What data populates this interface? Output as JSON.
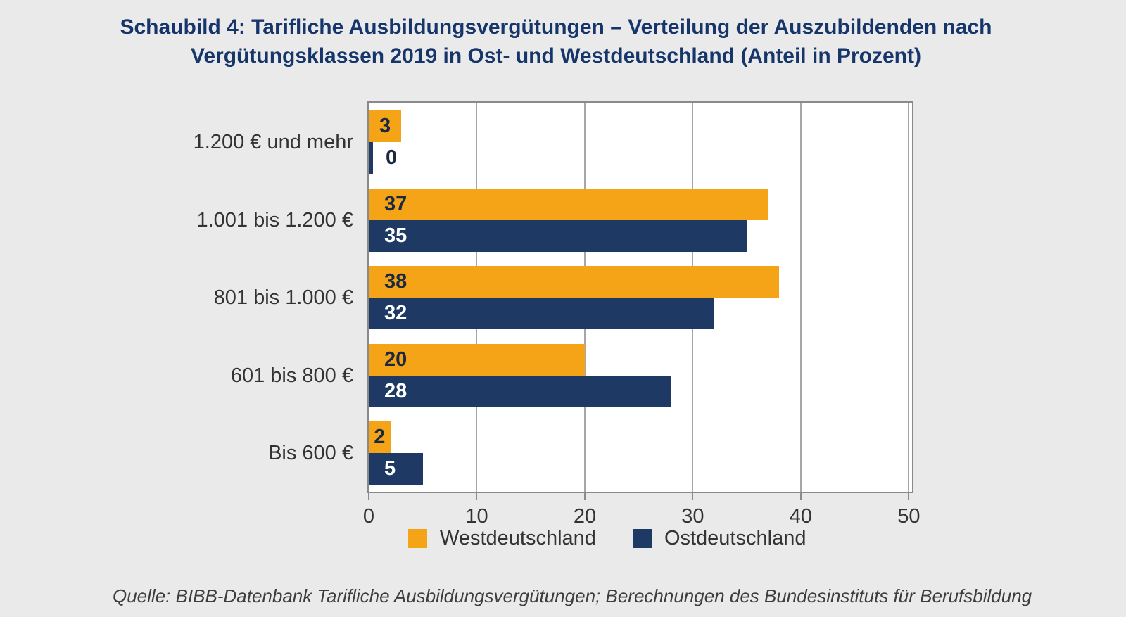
{
  "page": {
    "title_line1": "Schaubild 4: Tarifliche Ausbildungsvergütungen – Verteilung der Auszubildenden nach",
    "title_line2": "Vergütungsklassen 2019 in Ost- und Westdeutschland (Anteil in Prozent)",
    "source_note": "Quelle: BIBB-Datenbank Tarifliche Ausbildungsvergütungen; Berechnungen des Bundesinstituts für Berufsbildung"
  },
  "colors": {
    "background": "#EAEAEA",
    "title": "#16366B",
    "west_orange": "#F6A417",
    "ost_navy": "#1E3A64",
    "value_label_on_orange": "#1B2A41",
    "value_label_on_navy": "#FFFFFF",
    "value_label_outside": "#1B2A41",
    "axis_text": "#333333",
    "grid_line": "#A6A6A6",
    "plot_border": "#8A8A8A",
    "plot_background": "#FFFFFF"
  },
  "chart_data": {
    "type": "bar",
    "orientation": "horizontal",
    "title": "Schaubild 4: Tarifliche Ausbildungsvergütungen – Verteilung der Auszubildenden nach Vergütungsklassen 2019 in Ost- und Westdeutschland (Anteil in Prozent)",
    "unit": "Anteil in Prozent",
    "categories_top_to_bottom": [
      "1.200 € und mehr",
      "1.001 bis 1.200 €",
      "801 bis 1.000 €",
      "601 bis 800 €",
      "Bis 600 €"
    ],
    "series": [
      {
        "name": "Westdeutschland",
        "color": "#F6A417",
        "values": [
          3,
          37,
          38,
          20,
          2
        ]
      },
      {
        "name": "Ostdeutschland",
        "color": "#1E3A64",
        "values": [
          0,
          35,
          32,
          28,
          5
        ]
      }
    ],
    "x_ticks": [
      "0",
      "10",
      "20",
      "30",
      "40",
      "50"
    ],
    "x_tick_values": [
      0,
      10,
      20,
      30,
      40,
      50
    ],
    "xlim": [
      0,
      50.3
    ],
    "grid": "vertical gridlines at ticks, plot framed",
    "legend_position": "bottom",
    "value_labels": "inside bars (outside when value is 0)"
  }
}
